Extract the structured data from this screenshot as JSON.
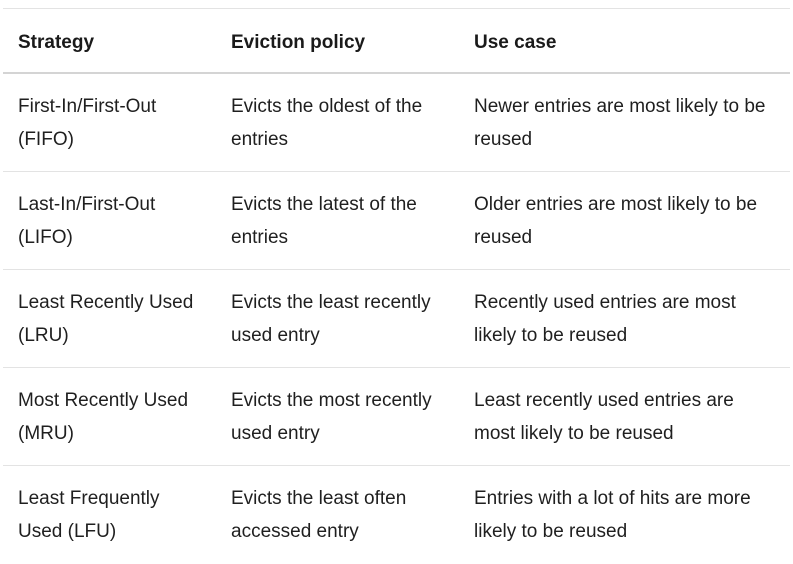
{
  "table": {
    "headers": [
      "Strategy",
      "Eviction policy",
      "Use case"
    ],
    "rows": [
      [
        "First-In/First-Out (FIFO)",
        "Evicts the oldest of the entries",
        "Newer entries are most likely to be reused"
      ],
      [
        "Last-In/First-Out (LIFO)",
        "Evicts the latest of the entries",
        "Older entries are most likely to be reused"
      ],
      [
        "Least Recently Used (LRU)",
        "Evicts the least recently used entry",
        "Recently used entries are most likely to be reused"
      ],
      [
        "Most Recently Used (MRU)",
        "Evicts the most recently used entry",
        "Least recently used entries are most likely to be reused"
      ],
      [
        "Least Frequently Used (LFU)",
        "Evicts the least often accessed entry",
        "Entries with a lot of hits are more likely to be reused"
      ]
    ]
  }
}
